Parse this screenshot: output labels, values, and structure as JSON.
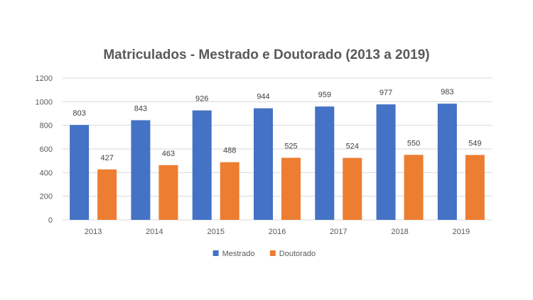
{
  "chart_data": {
    "type": "bar",
    "title": "Matriculados  - Mestrado  e Doutorado  (2013 a 2019)",
    "categories": [
      "2013",
      "2014",
      "2015",
      "2016",
      "2017",
      "2018",
      "2019"
    ],
    "series": [
      {
        "name": "Mestrado",
        "values": [
          803,
          843,
          926,
          944,
          959,
          977,
          983
        ],
        "color": "#4472c4"
      },
      {
        "name": "Doutorado",
        "values": [
          427,
          463,
          488,
          525,
          524,
          550,
          549
        ],
        "color": "#ed7d31"
      }
    ],
    "yticks": [
      "0",
      "200",
      "400",
      "600",
      "800",
      "1000",
      "1200"
    ],
    "ylim": [
      0,
      1200
    ],
    "grid": true,
    "legend": "bottom-center"
  }
}
